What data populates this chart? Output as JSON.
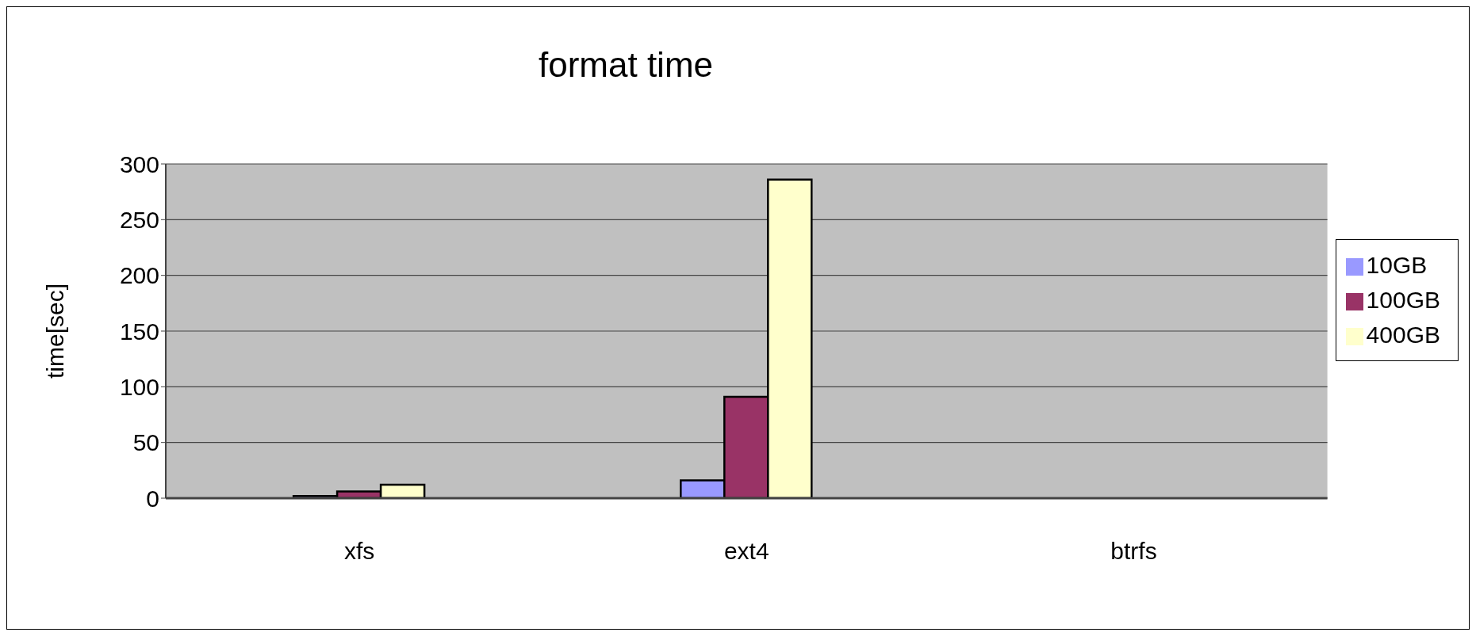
{
  "chart_data": {
    "type": "bar",
    "title": "format time",
    "ylabel": "time[sec]",
    "categories": [
      "xfs",
      "ext4",
      "btrfs"
    ],
    "series": [
      {
        "name": "10GB",
        "color": "#9999ff",
        "values": [
          2,
          16,
          null
        ]
      },
      {
        "name": "100GB",
        "color": "#993366",
        "values": [
          6,
          91,
          null
        ]
      },
      {
        "name": "400GB",
        "color": "#ffffcc",
        "values": [
          12,
          286,
          null
        ]
      }
    ],
    "ylim": [
      0,
      300
    ],
    "yticks": [
      0,
      50,
      100,
      150,
      200,
      250,
      300
    ],
    "grid": "y",
    "legend": "right"
  }
}
